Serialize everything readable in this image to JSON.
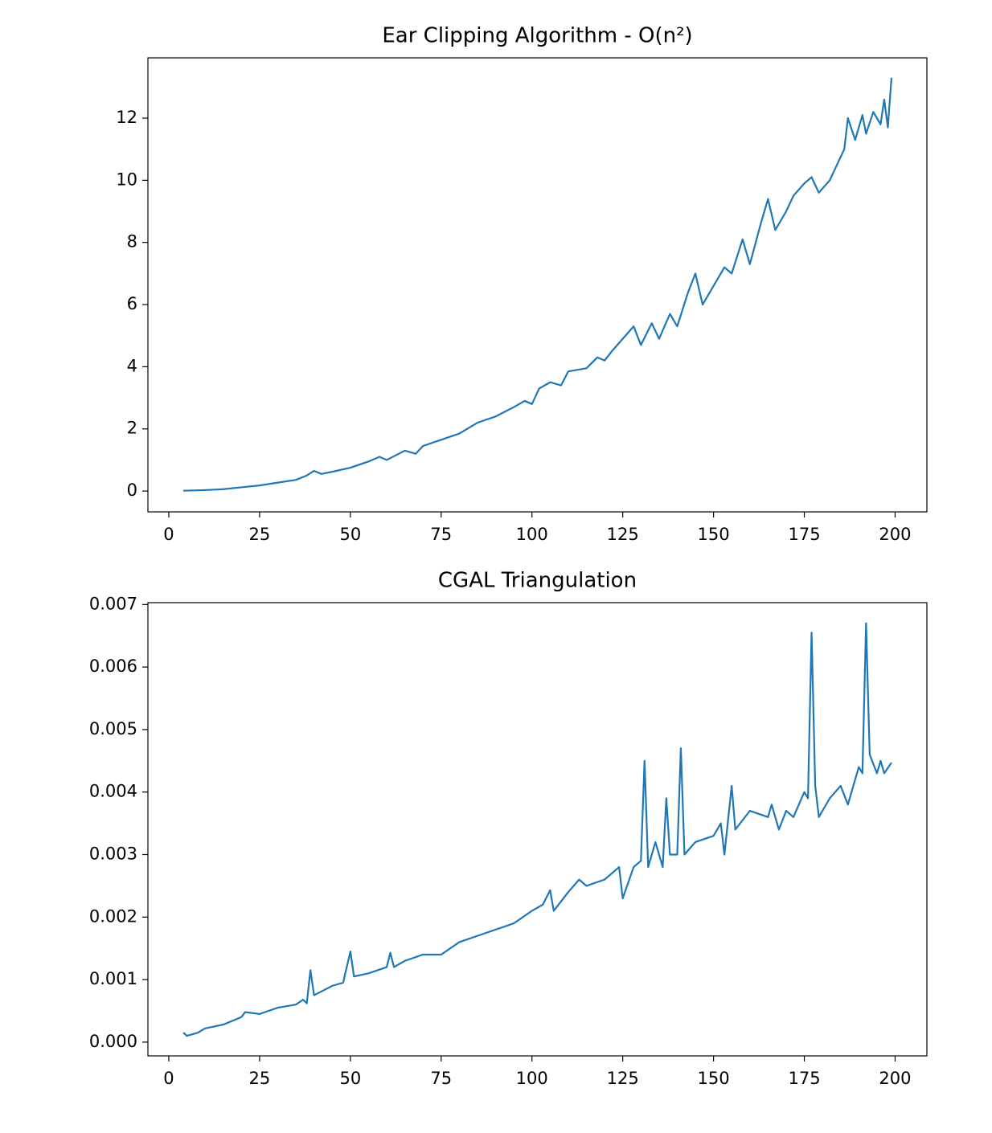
{
  "chart_data": [
    {
      "type": "line",
      "title": "Ear Clipping Algorithm - O(n²)",
      "x": [
        4,
        10,
        15,
        20,
        25,
        30,
        35,
        38,
        40,
        42,
        45,
        50,
        55,
        58,
        60,
        65,
        68,
        70,
        75,
        80,
        85,
        90,
        95,
        98,
        100,
        102,
        105,
        108,
        110,
        115,
        118,
        120,
        122,
        125,
        128,
        130,
        133,
        135,
        138,
        140,
        143,
        145,
        147,
        150,
        153,
        155,
        158,
        160,
        163,
        165,
        167,
        170,
        172,
        175,
        177,
        179,
        182,
        184,
        186,
        187,
        189,
        191,
        192,
        194,
        196,
        197,
        198,
        199
      ],
      "series": [
        {
          "name": "Ear Clipping",
          "color": "#1f77b4",
          "values": [
            0.01,
            0.03,
            0.06,
            0.12,
            0.18,
            0.27,
            0.36,
            0.5,
            0.65,
            0.55,
            0.62,
            0.75,
            0.95,
            1.1,
            1.0,
            1.3,
            1.2,
            1.45,
            1.65,
            1.85,
            2.2,
            2.4,
            2.7,
            2.9,
            2.8,
            3.3,
            3.5,
            3.4,
            3.85,
            3.95,
            4.3,
            4.2,
            4.5,
            4.9,
            5.3,
            4.7,
            5.4,
            4.9,
            5.7,
            5.3,
            6.4,
            7.0,
            6.0,
            6.6,
            7.2,
            7.0,
            8.1,
            7.3,
            8.6,
            9.4,
            8.4,
            9.0,
            9.5,
            9.9,
            10.1,
            9.6,
            10.0,
            10.5,
            11.0,
            12.0,
            11.3,
            12.1,
            11.5,
            12.2,
            11.8,
            12.6,
            11.7,
            13.3
          ]
        }
      ],
      "xlim": [
        -5.75,
        208.75
      ],
      "xticks": [
        0,
        25,
        50,
        75,
        100,
        125,
        150,
        175,
        200
      ],
      "ylim": [
        -0.67,
        13.94
      ],
      "yticks": [
        0,
        2,
        4,
        6,
        8,
        10,
        12
      ]
    },
    {
      "type": "line",
      "title": "CGAL Triangulation",
      "x": [
        4,
        5,
        8,
        10,
        15,
        20,
        21,
        25,
        30,
        35,
        37,
        38,
        39,
        40,
        45,
        48,
        50,
        51,
        55,
        60,
        61,
        62,
        65,
        70,
        75,
        80,
        85,
        90,
        95,
        100,
        103,
        105,
        106,
        110,
        113,
        115,
        120,
        124,
        125,
        128,
        130,
        131,
        132,
        134,
        136,
        137,
        138,
        140,
        141,
        142,
        145,
        150,
        152,
        153,
        155,
        156,
        160,
        165,
        166,
        168,
        170,
        172,
        175,
        176,
        177,
        178,
        179,
        182,
        185,
        187,
        190,
        191,
        192,
        193,
        195,
        196,
        197,
        199
      ],
      "series": [
        {
          "name": "CGAL",
          "color": "#1f77b4",
          "values": [
            0.00015,
            0.0001,
            0.00015,
            0.00022,
            0.00028,
            0.0004,
            0.00048,
            0.00045,
            0.00055,
            0.0006,
            0.00068,
            0.00062,
            0.00115,
            0.00075,
            0.0009,
            0.00095,
            0.00145,
            0.00105,
            0.0011,
            0.0012,
            0.00143,
            0.0012,
            0.0013,
            0.0014,
            0.0014,
            0.0016,
            0.0017,
            0.0018,
            0.0019,
            0.0021,
            0.0022,
            0.00243,
            0.0021,
            0.0024,
            0.0026,
            0.0025,
            0.0026,
            0.0028,
            0.0023,
            0.0028,
            0.0029,
            0.0045,
            0.0028,
            0.0032,
            0.0028,
            0.0039,
            0.003,
            0.003,
            0.0047,
            0.003,
            0.0032,
            0.0033,
            0.0035,
            0.003,
            0.0041,
            0.0034,
            0.0037,
            0.0036,
            0.0038,
            0.0034,
            0.0037,
            0.0036,
            0.004,
            0.0039,
            0.00655,
            0.0041,
            0.0036,
            0.0039,
            0.0041,
            0.0038,
            0.0044,
            0.0043,
            0.0067,
            0.0046,
            0.0043,
            0.0045,
            0.0043,
            0.00447
          ]
        }
      ],
      "xlim": [
        -5.75,
        208.75
      ],
      "xticks": [
        0,
        25,
        50,
        75,
        100,
        125,
        150,
        175,
        200
      ],
      "ylim": [
        -0.00022,
        0.00703
      ],
      "yticks": [
        {
          "value": 0,
          "label": "0.000"
        },
        {
          "value": 0.001,
          "label": "0.001"
        },
        {
          "value": 0.002,
          "label": "0.002"
        },
        {
          "value": 0.003,
          "label": "0.003"
        },
        {
          "value": 0.004,
          "label": "0.004"
        },
        {
          "value": 0.005,
          "label": "0.005"
        },
        {
          "value": 0.006,
          "label": "0.006"
        },
        {
          "value": 0.007,
          "label": "0.007"
        }
      ]
    }
  ]
}
